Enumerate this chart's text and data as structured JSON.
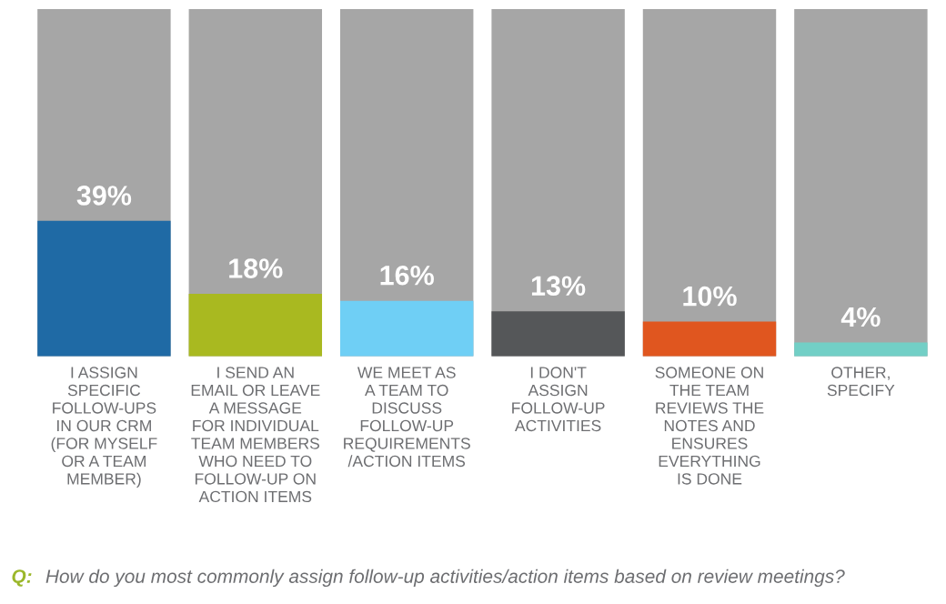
{
  "chart_data": {
    "type": "bar",
    "categories": [
      "I ASSIGN\nSPECIFIC\nFOLLOW-UPS\nIN OUR CRM\n(FOR MYSELF\nOR A TEAM\nMEMBER)",
      "I SEND AN\nEMAIL OR LEAVE\nA MESSAGE\nFOR INDIVIDUAL\nTEAM MEMBERS\nWHO NEED TO\nFOLLOW-UP ON\nACTION ITEMS",
      "WE MEET AS\nA TEAM TO\nDISCUSS\nFOLLOW-UP\nREQUIREMENTS\n/ACTION ITEMS",
      "I DON'T\nASSIGN\nFOLLOW-UP\nACTIVITIES",
      "SOMEONE ON\nTHE TEAM\nREVIEWS THE\nNOTES AND\nENSURES\nEVERYTHING\nIS DONE",
      "OTHER,\nSPECIFY"
    ],
    "values": [
      39,
      18,
      16,
      13,
      10,
      4
    ],
    "colors": [
      "#1f6aa5",
      "#a9b920",
      "#6fcff5",
      "#555759",
      "#e0561f",
      "#72cfc6"
    ],
    "value_labels": [
      "39%",
      "18%",
      "16%",
      "13%",
      "10%",
      "4%"
    ],
    "ylim": [
      0,
      100
    ],
    "tick_labels": "x",
    "grid": false,
    "annotations": [
      "Q:",
      "How do you most commonly assign follow-up activities/action items based on review meetings?"
    ]
  }
}
